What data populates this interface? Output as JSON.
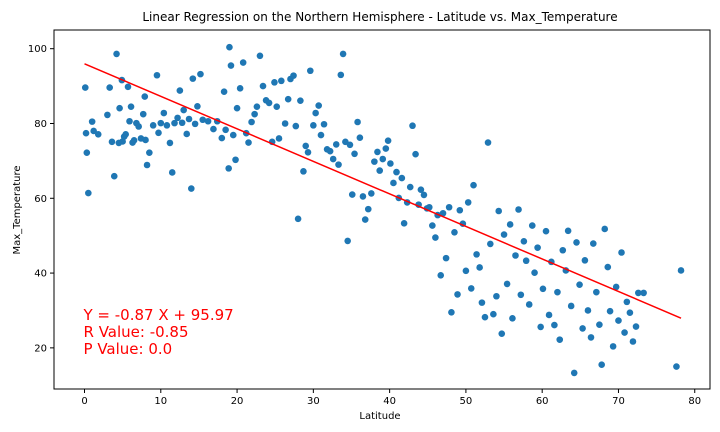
{
  "chart_data": {
    "type": "scatter",
    "title": "Linear Regression on the Northern Hemisphere - Latitude vs. Max_Temperature",
    "xlabel": "Latitude",
    "ylabel": "Max_Temperature",
    "xlim": [
      -4,
      82
    ],
    "ylim": [
      9,
      105
    ],
    "xticks": [
      0,
      10,
      20,
      30,
      40,
      50,
      60,
      70,
      80
    ],
    "yticks": [
      20,
      40,
      60,
      80,
      100
    ],
    "grid": false,
    "point_color": "#1f77b4",
    "regression": {
      "slope": -0.87,
      "intercept": 95.97,
      "x_range": [
        0,
        78.2
      ],
      "color": "#ff0000"
    },
    "annotations": [
      "Y = -0.87 X + 95.97",
      "R Value: -0.85",
      "P Value: 0.0"
    ],
    "annotation_color": "#ff0000",
    "points": [
      [
        0.1,
        89.6
      ],
      [
        0.2,
        77.4
      ],
      [
        0.3,
        72.2
      ],
      [
        0.5,
        61.4
      ],
      [
        1.0,
        80.5
      ],
      [
        1.2,
        78.0
      ],
      [
        1.8,
        77.1
      ],
      [
        3.0,
        82.3
      ],
      [
        3.3,
        89.6
      ],
      [
        3.6,
        75.1
      ],
      [
        3.9,
        65.9
      ],
      [
        4.2,
        98.6
      ],
      [
        4.5,
        74.8
      ],
      [
        4.6,
        84.1
      ],
      [
        4.9,
        91.6
      ],
      [
        5.0,
        75.2
      ],
      [
        5.2,
        76.5
      ],
      [
        5.4,
        77.1
      ],
      [
        5.7,
        89.8
      ],
      [
        5.9,
        80.6
      ],
      [
        6.1,
        84.5
      ],
      [
        6.3,
        74.9
      ],
      [
        6.5,
        75.5
      ],
      [
        6.8,
        80.1
      ],
      [
        7.1,
        79.2
      ],
      [
        7.4,
        76.0
      ],
      [
        7.7,
        82.5
      ],
      [
        7.9,
        87.2
      ],
      [
        8.0,
        75.6
      ],
      [
        8.2,
        68.9
      ],
      [
        8.5,
        72.2
      ],
      [
        9.0,
        79.5
      ],
      [
        9.5,
        92.9
      ],
      [
        9.7,
        77.5
      ],
      [
        10.0,
        80.1
      ],
      [
        10.4,
        82.8
      ],
      [
        10.8,
        79.5
      ],
      [
        11.2,
        74.8
      ],
      [
        11.5,
        66.9
      ],
      [
        11.8,
        80.1
      ],
      [
        12.2,
        81.5
      ],
      [
        12.5,
        88.8
      ],
      [
        12.8,
        80.2
      ],
      [
        13.0,
        83.6
      ],
      [
        13.4,
        77.2
      ],
      [
        13.7,
        81.2
      ],
      [
        14.0,
        62.6
      ],
      [
        14.2,
        92.0
      ],
      [
        14.5,
        79.9
      ],
      [
        14.8,
        84.6
      ],
      [
        15.2,
        93.2
      ],
      [
        15.5,
        81.0
      ],
      [
        16.2,
        80.6
      ],
      [
        16.9,
        78.5
      ],
      [
        17.4,
        80.6
      ],
      [
        18.0,
        76.1
      ],
      [
        18.3,
        88.5
      ],
      [
        18.5,
        78.3
      ],
      [
        18.9,
        68.0
      ],
      [
        19.0,
        100.4
      ],
      [
        19.2,
        95.5
      ],
      [
        19.5,
        76.9
      ],
      [
        19.8,
        70.3
      ],
      [
        20.0,
        84.1
      ],
      [
        20.4,
        89.4
      ],
      [
        20.8,
        96.3
      ],
      [
        21.2,
        77.4
      ],
      [
        21.5,
        74.9
      ],
      [
        21.9,
        80.4
      ],
      [
        22.3,
        82.5
      ],
      [
        22.6,
        84.5
      ],
      [
        23.0,
        98.1
      ],
      [
        23.4,
        90.0
      ],
      [
        23.8,
        86.2
      ],
      [
        24.2,
        85.5
      ],
      [
        24.6,
        75.1
      ],
      [
        24.9,
        91.0
      ],
      [
        25.2,
        84.5
      ],
      [
        25.5,
        76.0
      ],
      [
        25.8,
        91.4
      ],
      [
        26.3,
        80.0
      ],
      [
        26.7,
        86.5
      ],
      [
        27.0,
        91.9
      ],
      [
        27.4,
        92.8
      ],
      [
        27.7,
        79.3
      ],
      [
        28.0,
        54.5
      ],
      [
        28.3,
        86.1
      ],
      [
        28.7,
        67.2
      ],
      [
        29.0,
        74.0
      ],
      [
        29.3,
        72.3
      ],
      [
        29.6,
        94.1
      ],
      [
        30.0,
        79.5
      ],
      [
        30.3,
        82.8
      ],
      [
        30.7,
        84.8
      ],
      [
        31.0,
        76.9
      ],
      [
        31.4,
        79.8
      ],
      [
        31.8,
        73.1
      ],
      [
        32.2,
        72.6
      ],
      [
        32.6,
        70.5
      ],
      [
        33.0,
        74.4
      ],
      [
        33.3,
        69.0
      ],
      [
        33.6,
        93.0
      ],
      [
        33.9,
        98.6
      ],
      [
        34.2,
        75.1
      ],
      [
        34.5,
        48.6
      ],
      [
        34.8,
        74.3
      ],
      [
        35.1,
        61.0
      ],
      [
        35.4,
        71.9
      ],
      [
        35.8,
        80.4
      ],
      [
        36.1,
        76.2
      ],
      [
        36.5,
        60.5
      ],
      [
        36.8,
        54.3
      ],
      [
        37.2,
        57.1
      ],
      [
        37.6,
        61.3
      ],
      [
        38.0,
        69.8
      ],
      [
        38.4,
        72.4
      ],
      [
        38.7,
        67.4
      ],
      [
        39.1,
        70.5
      ],
      [
        39.5,
        73.3
      ],
      [
        39.8,
        75.4
      ],
      [
        40.1,
        69.3
      ],
      [
        40.5,
        64.1
      ],
      [
        40.9,
        67.0
      ],
      [
        41.2,
        60.1
      ],
      [
        41.6,
        65.4
      ],
      [
        41.9,
        53.3
      ],
      [
        42.3,
        58.9
      ],
      [
        42.7,
        63.0
      ],
      [
        43.0,
        79.4
      ],
      [
        43.4,
        71.8
      ],
      [
        43.8,
        58.3
      ],
      [
        44.1,
        62.3
      ],
      [
        44.5,
        60.9
      ],
      [
        44.9,
        57.3
      ],
      [
        45.2,
        57.6
      ],
      [
        45.6,
        52.7
      ],
      [
        46.0,
        49.5
      ],
      [
        46.3,
        55.5
      ],
      [
        46.7,
        39.4
      ],
      [
        47.0,
        56.0
      ],
      [
        47.4,
        44.0
      ],
      [
        47.8,
        57.6
      ],
      [
        48.1,
        29.5
      ],
      [
        48.5,
        50.9
      ],
      [
        48.9,
        34.3
      ],
      [
        49.2,
        56.8
      ],
      [
        49.6,
        53.2
      ],
      [
        50.0,
        40.6
      ],
      [
        50.3,
        58.9
      ],
      [
        50.7,
        35.9
      ],
      [
        51.0,
        63.5
      ],
      [
        51.4,
        45.0
      ],
      [
        51.8,
        41.5
      ],
      [
        52.1,
        32.1
      ],
      [
        52.5,
        28.2
      ],
      [
        52.9,
        74.9
      ],
      [
        53.2,
        47.8
      ],
      [
        53.6,
        29.0
      ],
      [
        54.0,
        33.8
      ],
      [
        54.3,
        56.6
      ],
      [
        54.7,
        23.8
      ],
      [
        55.0,
        50.3
      ],
      [
        55.4,
        37.1
      ],
      [
        55.8,
        53.0
      ],
      [
        56.1,
        27.9
      ],
      [
        56.5,
        44.7
      ],
      [
        56.9,
        57.0
      ],
      [
        57.2,
        34.2
      ],
      [
        57.6,
        48.5
      ],
      [
        57.9,
        43.3
      ],
      [
        58.3,
        31.6
      ],
      [
        58.7,
        52.7
      ],
      [
        59.0,
        40.1
      ],
      [
        59.4,
        46.8
      ],
      [
        59.8,
        25.6
      ],
      [
        60.1,
        35.8
      ],
      [
        60.5,
        51.2
      ],
      [
        60.9,
        28.8
      ],
      [
        61.2,
        43.0
      ],
      [
        61.6,
        26.1
      ],
      [
        62.0,
        34.9
      ],
      [
        62.3,
        22.2
      ],
      [
        62.7,
        46.1
      ],
      [
        63.1,
        40.7
      ],
      [
        63.4,
        51.3
      ],
      [
        63.8,
        31.2
      ],
      [
        64.2,
        13.3
      ],
      [
        64.5,
        48.2
      ],
      [
        64.9,
        36.9
      ],
      [
        65.3,
        25.2
      ],
      [
        65.6,
        43.4
      ],
      [
        66.0,
        30.0
      ],
      [
        66.4,
        22.8
      ],
      [
        66.7,
        47.9
      ],
      [
        67.1,
        34.9
      ],
      [
        67.5,
        26.2
      ],
      [
        67.8,
        15.5
      ],
      [
        68.2,
        51.8
      ],
      [
        68.6,
        41.6
      ],
      [
        68.9,
        29.8
      ],
      [
        69.3,
        20.4
      ],
      [
        69.7,
        36.3
      ],
      [
        70.0,
        27.3
      ],
      [
        70.4,
        45.5
      ],
      [
        70.8,
        24.1
      ],
      [
        71.1,
        32.3
      ],
      [
        71.5,
        29.4
      ],
      [
        71.9,
        21.7
      ],
      [
        72.3,
        25.7
      ],
      [
        72.6,
        34.7
      ],
      [
        73.3,
        34.7
      ],
      [
        77.6,
        15.0
      ],
      [
        78.2,
        40.7
      ]
    ]
  }
}
